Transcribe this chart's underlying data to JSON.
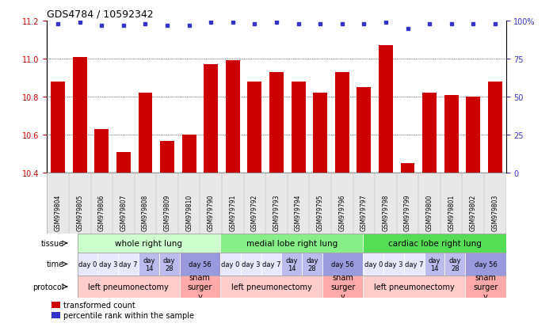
{
  "title": "GDS4784 / 10592342",
  "samples": [
    "GSM979804",
    "GSM979805",
    "GSM979806",
    "GSM979807",
    "GSM979808",
    "GSM979809",
    "GSM979810",
    "GSM979790",
    "GSM979791",
    "GSM979792",
    "GSM979793",
    "GSM979794",
    "GSM979795",
    "GSM979796",
    "GSM979797",
    "GSM979798",
    "GSM979799",
    "GSM979800",
    "GSM979801",
    "GSM979802",
    "GSM979803"
  ],
  "bar_values": [
    10.88,
    11.01,
    10.63,
    10.51,
    10.82,
    10.57,
    10.6,
    10.97,
    10.99,
    10.88,
    10.93,
    10.88,
    10.82,
    10.93,
    10.85,
    11.07,
    10.45,
    10.82,
    10.81,
    10.8,
    10.88
  ],
  "percentile_values": [
    98,
    99,
    97,
    97,
    98,
    97,
    97,
    99,
    99,
    98,
    99,
    98,
    98,
    98,
    98,
    99,
    95,
    98,
    98,
    98,
    98
  ],
  "ylim_left": [
    10.4,
    11.2
  ],
  "ylim_right": [
    0,
    100
  ],
  "yticks_left": [
    10.4,
    10.6,
    10.8,
    11.0,
    11.2
  ],
  "yticks_right": [
    0,
    25,
    50,
    75,
    100
  ],
  "ytick_labels_right": [
    "0",
    "25",
    "50",
    "75",
    "100%"
  ],
  "bar_color": "#cc0000",
  "dot_color": "#3333cc",
  "grid_lines": [
    10.6,
    10.8,
    11.0
  ],
  "tissue_groups": [
    {
      "label": "whole right lung",
      "start": 0,
      "end": 7,
      "color": "#ccffcc"
    },
    {
      "label": "medial lobe right lung",
      "start": 7,
      "end": 14,
      "color": "#88ee88"
    },
    {
      "label": "cardiac lobe right lung",
      "start": 14,
      "end": 21,
      "color": "#55dd55"
    }
  ],
  "time_groups": [
    {
      "label": "day 0",
      "start": 0,
      "end": 1,
      "color": "#e8e8ff"
    },
    {
      "label": "day 3",
      "start": 1,
      "end": 2,
      "color": "#e8e8ff"
    },
    {
      "label": "day 7",
      "start": 2,
      "end": 3,
      "color": "#e8e8ff"
    },
    {
      "label": "day\n14",
      "start": 3,
      "end": 4,
      "color": "#bbbbee"
    },
    {
      "label": "day\n28",
      "start": 4,
      "end": 5,
      "color": "#bbbbee"
    },
    {
      "label": "day 56",
      "start": 5,
      "end": 7,
      "color": "#9999dd"
    },
    {
      "label": "day 0",
      "start": 7,
      "end": 8,
      "color": "#e8e8ff"
    },
    {
      "label": "day 3",
      "start": 8,
      "end": 9,
      "color": "#e8e8ff"
    },
    {
      "label": "day 7",
      "start": 9,
      "end": 10,
      "color": "#e8e8ff"
    },
    {
      "label": "day\n14",
      "start": 10,
      "end": 11,
      "color": "#bbbbee"
    },
    {
      "label": "day\n28",
      "start": 11,
      "end": 12,
      "color": "#bbbbee"
    },
    {
      "label": "day 56",
      "start": 12,
      "end": 14,
      "color": "#9999dd"
    },
    {
      "label": "day 0",
      "start": 14,
      "end": 15,
      "color": "#e8e8ff"
    },
    {
      "label": "day 3",
      "start": 15,
      "end": 16,
      "color": "#e8e8ff"
    },
    {
      "label": "day 7",
      "start": 16,
      "end": 17,
      "color": "#e8e8ff"
    },
    {
      "label": "day\n14",
      "start": 17,
      "end": 18,
      "color": "#bbbbee"
    },
    {
      "label": "day\n28",
      "start": 18,
      "end": 19,
      "color": "#bbbbee"
    },
    {
      "label": "day 56",
      "start": 19,
      "end": 21,
      "color": "#9999dd"
    }
  ],
  "protocol_groups": [
    {
      "label": "left pneumonectomy",
      "start": 0,
      "end": 5,
      "color": "#ffcccc"
    },
    {
      "label": "sham\nsurger\ny",
      "start": 5,
      "end": 7,
      "color": "#ffaaaa"
    },
    {
      "label": "left pneumonectomy",
      "start": 7,
      "end": 12,
      "color": "#ffcccc"
    },
    {
      "label": "sham\nsurger\ny",
      "start": 12,
      "end": 14,
      "color": "#ffaaaa"
    },
    {
      "label": "left pneumonectomy",
      "start": 14,
      "end": 19,
      "color": "#ffcccc"
    },
    {
      "label": "sham\nsurger\ny",
      "start": 19,
      "end": 21,
      "color": "#ffaaaa"
    }
  ],
  "legend_items": [
    {
      "color": "#cc0000",
      "label": "transformed count"
    },
    {
      "color": "#3333cc",
      "label": "percentile rank within the sample"
    }
  ]
}
